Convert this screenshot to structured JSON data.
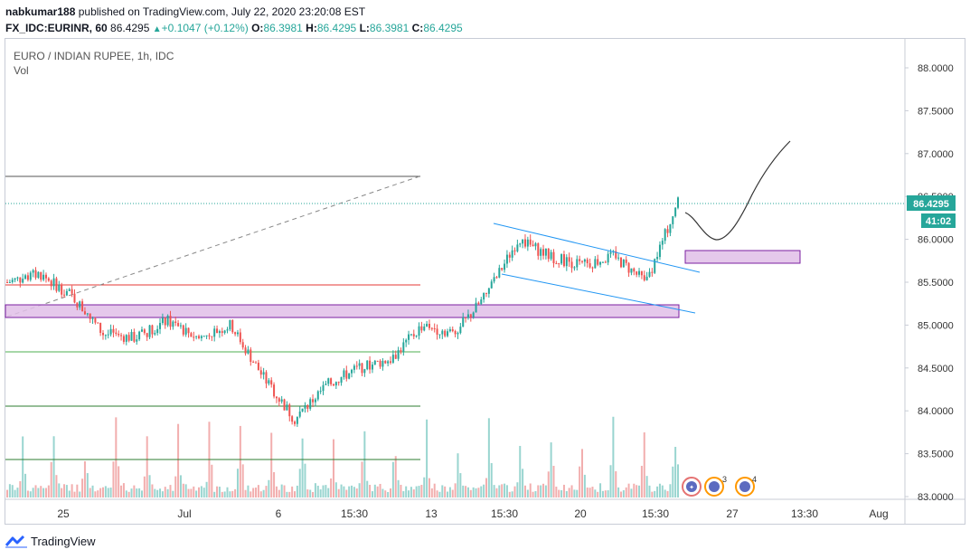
{
  "header": {
    "publisher": "nabkumar188",
    "published_text": "published on TradingView.com, July 22, 2020 23:20:08 EST",
    "symbol": "FX_IDC:EURINR, 60",
    "last_price": "86.4295",
    "change": "+0.1047 (+0.12%)",
    "open_label": "O:",
    "open": "86.3981",
    "high_label": "H:",
    "high": "86.4295",
    "low_label": "L:",
    "low": "86.3981",
    "close_label": "C:",
    "close": "86.4295"
  },
  "legend": {
    "title": "EURO / INDIAN RUPEE, 1h, IDC",
    "volume_label": "Vol"
  },
  "price_axis": {
    "ticks": [
      "88.0000",
      "87.5000",
      "87.0000",
      "86.5000",
      "86.0000",
      "85.5000",
      "85.0000",
      "84.5000",
      "84.0000",
      "83.5000",
      "83.0000"
    ],
    "last_price_label": "86.4295",
    "countdown": "41:02"
  },
  "time_axis": {
    "ticks": [
      "25",
      "Jul",
      "6",
      "15:30",
      "13",
      "15:30",
      "20",
      "15:30",
      "27",
      "13:30",
      "Aug"
    ]
  },
  "events": {
    "badge1_count": "3",
    "badge2_count": "4"
  },
  "footer": {
    "brand": "TradingView"
  },
  "colors": {
    "up": "#26a69a",
    "down": "#ef5350",
    "channel": "#2196f3",
    "zone_fill": "#e1bee7",
    "zone_border": "#7b1fa2",
    "support_green": "#4caf50",
    "resistance_red": "#e53935",
    "last_price_bg": "#26a69a"
  },
  "chart_data": {
    "type": "candlestick",
    "title": "EURO / INDIAN RUPEE, 1h, IDC",
    "ylim": [
      83.0,
      88.0
    ],
    "last_price": 86.4295,
    "price_path": [
      [
        "Jun 23",
        85.5
      ],
      [
        "Jun 24",
        85.6
      ],
      [
        "Jun 25",
        85.35
      ],
      [
        "Jun 26",
        84.9
      ],
      [
        "Jun 29",
        84.85
      ],
      [
        "Jun 30",
        85.05
      ],
      [
        "Jul 1",
        84.85
      ],
      [
        "Jul 2",
        85.0
      ],
      [
        "Jul 3",
        84.4
      ],
      [
        "Jul 6",
        83.9
      ],
      [
        "Jul 7",
        84.3
      ],
      [
        "Jul 8",
        84.5
      ],
      [
        "Jul 9",
        84.6
      ],
      [
        "Jul 10",
        85.0
      ],
      [
        "Jul 13",
        84.9
      ],
      [
        "Jul 14",
        85.35
      ],
      [
        "Jul 15",
        86.0
      ],
      [
        "Jul 16",
        85.8
      ],
      [
        "Jul 17",
        85.7
      ],
      [
        "Jul 20",
        85.8
      ],
      [
        "Jul 21",
        85.5
      ],
      [
        "Jul 22",
        86.43
      ]
    ],
    "horizontal_levels": [
      {
        "price": 86.72,
        "color": "#555555"
      },
      {
        "price": 85.47,
        "color": "#e53935"
      },
      {
        "price": 84.67,
        "color": "#4caf50"
      },
      {
        "price": 84.04,
        "color": "#4caf50"
      },
      {
        "price": 83.43,
        "color": "#4caf50"
      }
    ],
    "zones": [
      {
        "from": 85.07,
        "to": 85.23
      },
      {
        "from": 85.72,
        "to": 85.88
      }
    ]
  }
}
